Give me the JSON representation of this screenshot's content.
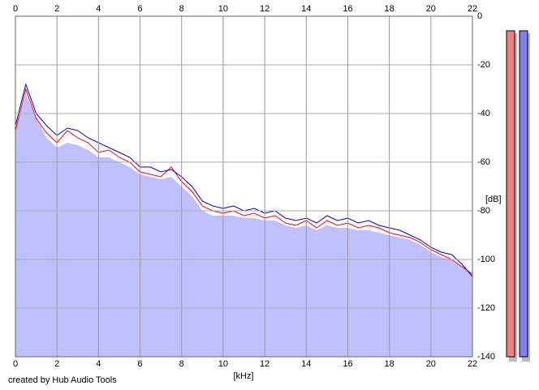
{
  "chart_data": {
    "type": "line",
    "x_label": "[kHz]",
    "y_label": "[dB]",
    "credit": "created by Hub Audio Tools",
    "x": [
      0,
      0.5,
      1,
      1.5,
      2,
      2.5,
      3,
      3.5,
      4,
      4.5,
      5,
      5.5,
      6,
      6.5,
      7,
      7.5,
      8,
      8.5,
      9,
      9.5,
      10,
      10.5,
      11,
      11.5,
      12,
      12.5,
      13,
      13.5,
      14,
      14.5,
      15,
      15.5,
      16,
      16.5,
      17,
      17.5,
      18,
      18.5,
      19,
      19.5,
      20,
      20.5,
      21,
      21.5,
      22
    ],
    "series": [
      {
        "color": "#c0c0ff",
        "fill": true,
        "values": [
          -47,
          -32,
          -42,
          -50,
          -54,
          -52,
          -53,
          -55,
          -58,
          -58,
          -60,
          -62,
          -65,
          -66,
          -67,
          -66,
          -70,
          -74,
          -80,
          -82,
          -82,
          -82,
          -83,
          -83,
          -84,
          -84,
          -86,
          -87,
          -86,
          -88,
          -86,
          -87,
          -87,
          -88,
          -88,
          -89,
          -90,
          -91,
          -92,
          -94,
          -97,
          -99,
          -100,
          -103,
          -106
        ]
      },
      {
        "color": "#ff0000",
        "values": [
          -47,
          -30,
          -42,
          -48,
          -52,
          -47,
          -50,
          -52,
          -56,
          -55,
          -58,
          -60,
          -64,
          -65,
          -66,
          -62,
          -68,
          -72,
          -78,
          -80,
          -81,
          -80,
          -82,
          -81,
          -83,
          -82,
          -85,
          -86,
          -84,
          -87,
          -84,
          -86,
          -85,
          -87,
          -86,
          -87,
          -89,
          -90,
          -91,
          -93,
          -96,
          -98,
          -100,
          -103,
          -106
        ]
      },
      {
        "color": "#0000cc",
        "values": [
          -45,
          -28,
          -40,
          -45,
          -49,
          -46,
          -47,
          -50,
          -52,
          -54,
          -56,
          -58,
          -62,
          -62,
          -64,
          -63,
          -66,
          -70,
          -76,
          -78,
          -79,
          -78,
          -80,
          -79,
          -81,
          -80,
          -83,
          -84,
          -83,
          -85,
          -82,
          -84,
          -83,
          -85,
          -84,
          -86,
          -87,
          -88,
          -90,
          -92,
          -95,
          -97,
          -98,
          -102,
          -107
        ]
      }
    ],
    "xlim": [
      0,
      22
    ],
    "xticks": [
      0,
      2,
      4,
      6,
      8,
      10,
      12,
      14,
      16,
      18,
      20,
      22
    ],
    "ylim": [
      -140,
      0
    ],
    "yticks": [
      0,
      -20,
      -40,
      -60,
      -80,
      -100,
      -120,
      -140
    ],
    "grid": true,
    "meters": [
      {
        "color": "#f08080",
        "value": -6
      },
      {
        "color": "#8080f0",
        "value": -6
      }
    ]
  }
}
